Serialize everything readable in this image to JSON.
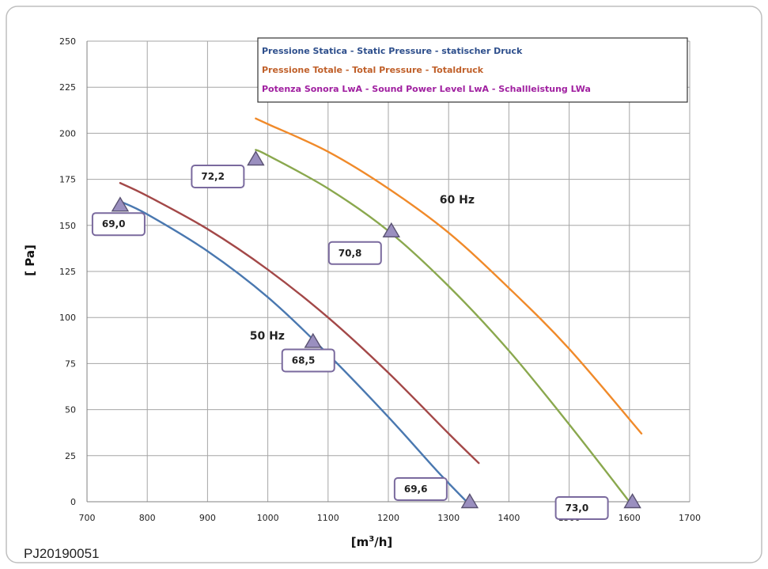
{
  "chart_data": {
    "type": "line",
    "xlabel_base": "[m",
    "xlabel_sup": "3",
    "xlabel_tail": "/h]",
    "ylabel": "[ Pa]",
    "xlim": [
      700,
      1700
    ],
    "ylim": [
      0,
      250
    ],
    "x_ticks": [
      700,
      800,
      900,
      1000,
      1100,
      1200,
      1300,
      1400,
      1500,
      1600,
      1700
    ],
    "y_ticks": [
      0,
      25,
      50,
      75,
      100,
      125,
      150,
      175,
      200,
      225,
      250
    ],
    "grid": true,
    "legend": {
      "placement": "top-center",
      "entries": [
        {
          "text": "Pressione Statica - Static Pressure - statischer Druck",
          "color": "#2e4f8c"
        },
        {
          "text": "Pressione  Totale  - Total Pressure - Totaldruck",
          "color": "#c0602a"
        },
        {
          "text": "Potenza Sonora LwA - Sound Power Level LwA - Schallleistung LWa",
          "color": "#a020a0"
        }
      ]
    },
    "series": [
      {
        "color": "#4a78b0",
        "x": [
          755,
          800,
          900,
          1000,
          1100,
          1200,
          1280,
          1330
        ],
        "y": [
          163,
          156,
          136,
          111,
          80,
          46,
          17,
          0
        ]
      },
      {
        "color": "#a34848",
        "x": [
          755,
          800,
          900,
          1000,
          1100,
          1200,
          1300,
          1350
        ],
        "y": [
          173,
          166,
          148,
          126,
          100,
          70,
          37,
          21
        ]
      },
      {
        "color": "#8aa84e",
        "x": [
          980,
          1000,
          1100,
          1200,
          1300,
          1400,
          1500,
          1600
        ],
        "y": [
          191,
          188,
          170,
          147,
          117,
          82,
          42,
          0
        ]
      },
      {
        "color": "#f08a2a",
        "x": [
          980,
          1000,
          1100,
          1200,
          1300,
          1400,
          1500,
          1620
        ],
        "y": [
          208,
          205,
          190,
          170,
          146,
          116,
          83,
          37
        ]
      }
    ],
    "markers": [
      {
        "x": 755,
        "y": 161,
        "label": "69,0"
      },
      {
        "x": 1075,
        "y": 87,
        "label": "68,5"
      },
      {
        "x": 1335,
        "y": 0,
        "label": "69,6"
      },
      {
        "x": 980,
        "y": 186,
        "label": "72,2"
      },
      {
        "x": 1205,
        "y": 147,
        "label": "70,8"
      },
      {
        "x": 1605,
        "y": 0,
        "label": "73,0"
      }
    ],
    "annotations": [
      {
        "text": "50 Hz",
        "x": 970,
        "y": 88
      },
      {
        "text": "60 Hz",
        "x": 1285,
        "y": 162
      }
    ]
  },
  "footer": {
    "code": "PJ20190051"
  }
}
